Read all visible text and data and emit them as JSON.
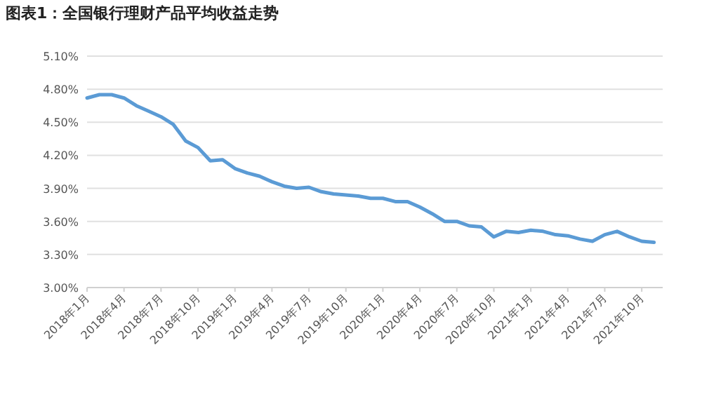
{
  "chart_data": {
    "type": "line",
    "title": "图表1：全国银行理财产品平均收益走势",
    "categories": [
      "2018年1月",
      null,
      null,
      "2018年4月",
      null,
      null,
      "2018年7月",
      null,
      null,
      "2018年10月",
      null,
      null,
      "2019年1月",
      null,
      null,
      "2019年4月",
      null,
      null,
      "2019年7月",
      null,
      null,
      "2019年10月",
      null,
      null,
      "2020年1月",
      null,
      null,
      "2020年4月",
      null,
      null,
      "2020年7月",
      null,
      null,
      "2020年10月",
      null,
      null,
      "2021年1月",
      null,
      null,
      "2021年4月",
      null,
      null,
      "2021年7月",
      null,
      null,
      "2021年10月",
      null
    ],
    "values": [
      4.72,
      4.75,
      4.75,
      4.72,
      4.65,
      4.6,
      4.55,
      4.48,
      4.33,
      4.27,
      4.15,
      4.16,
      4.08,
      4.04,
      4.01,
      3.96,
      3.92,
      3.9,
      3.91,
      3.87,
      3.85,
      3.84,
      3.83,
      3.81,
      3.81,
      3.78,
      3.78,
      3.73,
      3.67,
      3.6,
      3.6,
      3.56,
      3.55,
      3.46,
      3.51,
      3.5,
      3.52,
      3.51,
      3.48,
      3.47,
      3.44,
      3.42,
      3.48,
      3.51,
      3.46,
      3.42,
      3.41
    ],
    "color": "#5b9bd5",
    "ylim": [
      3.0,
      5.1
    ],
    "yticks": [
      {
        "value": 3.0,
        "label": "3.00%"
      },
      {
        "value": 3.3,
        "label": "3.30%"
      },
      {
        "value": 3.6,
        "label": "3.60%"
      },
      {
        "value": 3.9,
        "label": "3.90%"
      },
      {
        "value": 4.2,
        "label": "4.20%"
      },
      {
        "value": 4.5,
        "label": "4.50%"
      },
      {
        "value": 4.8,
        "label": "4.80%"
      },
      {
        "value": 5.1,
        "label": "5.10%"
      }
    ],
    "grid": "y"
  }
}
